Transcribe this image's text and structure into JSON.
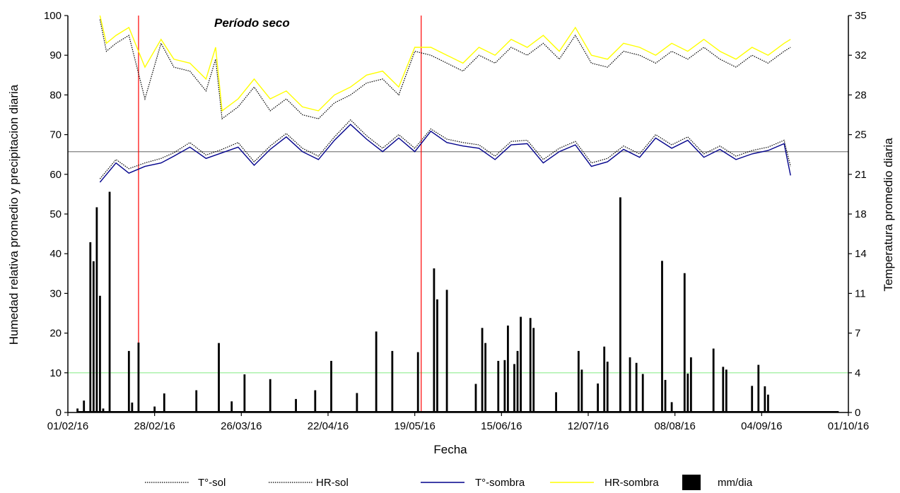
{
  "chart_data": {
    "type": "line",
    "title": "Período seco",
    "xlabel": "Fecha",
    "ylabel_left": "Humedad relativa promedio y precipitacion diaria",
    "ylabel_right": "Temperatura promedio diaria",
    "x_range": [
      "2016-02-01",
      "2016-10-01"
    ],
    "x_ticks": [
      "01/02/16",
      "28/02/16",
      "26/03/16",
      "22/04/16",
      "19/05/16",
      "15/06/16",
      "12/07/16",
      "08/08/16",
      "04/09/16",
      "01/10/16"
    ],
    "y_left": {
      "min": 0,
      "max": 100,
      "ticks": [
        "0",
        "10",
        "20",
        "30",
        "40",
        "50",
        "60",
        "70",
        "80",
        "90",
        "100"
      ]
    },
    "y_right": {
      "min": 0,
      "max": 35,
      "ticks": [
        "0",
        "4",
        "7",
        "11",
        "14",
        "18",
        "21",
        "25",
        "28",
        "32",
        "35"
      ]
    },
    "reference_lines": [
      {
        "axis": "left",
        "value": 65.7,
        "color": "#808080"
      },
      {
        "axis": "left",
        "value": 10,
        "color": "#90ee90"
      },
      {
        "axis": "x",
        "value": "2016-02-23",
        "color": "#ff0000"
      },
      {
        "axis": "x",
        "value": "2016-05-21",
        "color": "#ff0000"
      }
    ],
    "series": [
      {
        "name": "T°-sol",
        "axis": "right",
        "color": "#000000",
        "dash": "dotted",
        "x": [
          "2016-02-11",
          "2016-02-16",
          "2016-02-20",
          "2016-02-25",
          "2016-03-01",
          "2016-03-05",
          "2016-03-10",
          "2016-03-15",
          "2016-03-20",
          "2016-03-25",
          "2016-03-30",
          "2016-04-04",
          "2016-04-09",
          "2016-04-14",
          "2016-04-19",
          "2016-04-24",
          "2016-04-29",
          "2016-05-04",
          "2016-05-09",
          "2016-05-14",
          "2016-05-19",
          "2016-05-24",
          "2016-05-29",
          "2016-06-03",
          "2016-06-08",
          "2016-06-13",
          "2016-06-18",
          "2016-06-23",
          "2016-06-28",
          "2016-07-03",
          "2016-07-08",
          "2016-07-13",
          "2016-07-18",
          "2016-07-23",
          "2016-07-28",
          "2016-08-02",
          "2016-08-07",
          "2016-08-12",
          "2016-08-17",
          "2016-08-22",
          "2016-08-27",
          "2016-09-01",
          "2016-09-06",
          "2016-09-11",
          "2016-09-13"
        ],
        "values": [
          20.6,
          22.3,
          21.5,
          22.0,
          22.4,
          22.9,
          23.8,
          22.7,
          23.2,
          23.8,
          22.1,
          23.5,
          24.6,
          23.3,
          22.6,
          24.3,
          25.8,
          24.4,
          23.3,
          24.5,
          23.3,
          25.0,
          24.1,
          23.8,
          23.6,
          22.6,
          23.9,
          24.0,
          22.3,
          23.3,
          23.9,
          22.0,
          22.4,
          23.5,
          22.8,
          24.5,
          23.6,
          24.3,
          22.8,
          23.5,
          22.6,
          23.1,
          23.4,
          24.0,
          21.7
        ]
      },
      {
        "name": "HR-sol",
        "axis": "left",
        "color": "#000000",
        "dash": "dotted",
        "x": [
          "2016-02-11",
          "2016-02-13",
          "2016-02-16",
          "2016-02-20",
          "2016-02-25",
          "2016-03-01",
          "2016-03-05",
          "2016-03-10",
          "2016-03-15",
          "2016-03-18",
          "2016-03-20",
          "2016-03-25",
          "2016-03-30",
          "2016-04-04",
          "2016-04-09",
          "2016-04-14",
          "2016-04-19",
          "2016-04-24",
          "2016-04-29",
          "2016-05-04",
          "2016-05-09",
          "2016-05-14",
          "2016-05-19",
          "2016-05-24",
          "2016-05-29",
          "2016-06-03",
          "2016-06-08",
          "2016-06-13",
          "2016-06-18",
          "2016-06-23",
          "2016-06-28",
          "2016-07-03",
          "2016-07-08",
          "2016-07-13",
          "2016-07-18",
          "2016-07-23",
          "2016-07-28",
          "2016-08-02",
          "2016-08-07",
          "2016-08-12",
          "2016-08-17",
          "2016-08-22",
          "2016-08-27",
          "2016-09-01",
          "2016-09-06",
          "2016-09-11",
          "2016-09-13"
        ],
        "values": [
          99,
          91,
          93,
          95,
          79,
          93,
          87,
          86,
          81,
          89,
          74,
          77,
          82,
          76,
          79,
          75,
          74,
          78,
          80,
          83,
          84,
          80,
          91,
          90,
          88,
          86,
          90,
          88,
          92,
          90,
          93,
          89,
          95,
          88,
          87,
          91,
          90,
          88,
          91,
          89,
          92,
          89,
          87,
          90,
          88,
          91,
          92
        ]
      },
      {
        "name": "T°-sombra",
        "axis": "right",
        "color": "#00008b",
        "dash": "solid",
        "x": [
          "2016-02-11",
          "2016-02-16",
          "2016-02-20",
          "2016-02-25",
          "2016-03-01",
          "2016-03-05",
          "2016-03-10",
          "2016-03-15",
          "2016-03-20",
          "2016-03-25",
          "2016-03-30",
          "2016-04-04",
          "2016-04-09",
          "2016-04-14",
          "2016-04-19",
          "2016-04-24",
          "2016-04-29",
          "2016-05-04",
          "2016-05-09",
          "2016-05-14",
          "2016-05-19",
          "2016-05-24",
          "2016-05-29",
          "2016-06-03",
          "2016-06-08",
          "2016-06-13",
          "2016-06-18",
          "2016-06-23",
          "2016-06-28",
          "2016-07-03",
          "2016-07-08",
          "2016-07-13",
          "2016-07-18",
          "2016-07-23",
          "2016-07-28",
          "2016-08-02",
          "2016-08-07",
          "2016-08-12",
          "2016-08-17",
          "2016-08-22",
          "2016-08-27",
          "2016-09-01",
          "2016-09-06",
          "2016-09-11",
          "2016-09-13"
        ],
        "values": [
          20.3,
          22.0,
          21.1,
          21.7,
          22.0,
          22.6,
          23.4,
          22.4,
          22.9,
          23.4,
          21.8,
          23.2,
          24.3,
          23.0,
          22.3,
          24.0,
          25.4,
          24.1,
          23.0,
          24.2,
          23.0,
          24.8,
          23.8,
          23.5,
          23.3,
          22.3,
          23.6,
          23.7,
          22.0,
          23.0,
          23.6,
          21.7,
          22.1,
          23.2,
          22.5,
          24.2,
          23.3,
          24.0,
          22.5,
          23.2,
          22.3,
          22.8,
          23.1,
          23.7,
          20.9
        ]
      },
      {
        "name": "HR-sombra",
        "axis": "left",
        "color": "#ffff00",
        "dash": "solid",
        "x": [
          "2016-02-11",
          "2016-02-13",
          "2016-02-16",
          "2016-02-20",
          "2016-02-25",
          "2016-03-01",
          "2016-03-05",
          "2016-03-10",
          "2016-03-15",
          "2016-03-18",
          "2016-03-20",
          "2016-03-25",
          "2016-03-30",
          "2016-04-04",
          "2016-04-09",
          "2016-04-14",
          "2016-04-19",
          "2016-04-24",
          "2016-04-29",
          "2016-05-04",
          "2016-05-09",
          "2016-05-14",
          "2016-05-19",
          "2016-05-24",
          "2016-05-29",
          "2016-06-03",
          "2016-06-08",
          "2016-06-13",
          "2016-06-18",
          "2016-06-23",
          "2016-06-28",
          "2016-07-03",
          "2016-07-08",
          "2016-07-13",
          "2016-07-18",
          "2016-07-23",
          "2016-07-28",
          "2016-08-02",
          "2016-08-07",
          "2016-08-12",
          "2016-08-17",
          "2016-08-22",
          "2016-08-27",
          "2016-09-01",
          "2016-09-06",
          "2016-09-11",
          "2016-09-13"
        ],
        "values": [
          100,
          93,
          95,
          97,
          87,
          94,
          89,
          88,
          84,
          92,
          76,
          79,
          84,
          79,
          81,
          77,
          76,
          80,
          82,
          85,
          86,
          82,
          92,
          92,
          90,
          88,
          92,
          90,
          94,
          92,
          95,
          91,
          97,
          90,
          89,
          93,
          92,
          90,
          93,
          91,
          94,
          91,
          89,
          92,
          90,
          93,
          94
        ]
      },
      {
        "name": "mm/dia",
        "axis": "left",
        "color": "#000000",
        "type": "bar",
        "x": [
          "2016-02-04",
          "2016-02-06",
          "2016-02-08",
          "2016-02-09",
          "2016-02-10",
          "2016-02-11",
          "2016-02-12",
          "2016-02-14",
          "2016-02-20",
          "2016-02-21",
          "2016-02-23",
          "2016-02-28",
          "2016-03-02",
          "2016-03-12",
          "2016-03-19",
          "2016-03-23",
          "2016-03-27",
          "2016-04-04",
          "2016-04-12",
          "2016-04-18",
          "2016-04-23",
          "2016-05-01",
          "2016-05-07",
          "2016-05-12",
          "2016-05-20",
          "2016-05-25",
          "2016-05-26",
          "2016-05-29",
          "2016-06-07",
          "2016-06-09",
          "2016-06-10",
          "2016-06-14",
          "2016-06-16",
          "2016-06-17",
          "2016-06-19",
          "2016-06-20",
          "2016-06-21",
          "2016-06-24",
          "2016-06-25",
          "2016-07-02",
          "2016-07-09",
          "2016-07-10",
          "2016-07-15",
          "2016-07-17",
          "2016-07-18",
          "2016-07-22",
          "2016-07-25",
          "2016-07-27",
          "2016-07-29",
          "2016-08-04",
          "2016-08-05",
          "2016-08-07",
          "2016-08-11",
          "2016-08-12",
          "2016-08-13",
          "2016-08-20",
          "2016-08-23",
          "2016-08-24",
          "2016-09-01",
          "2016-09-03",
          "2016-09-05",
          "2016-09-06"
        ],
        "values": [
          1,
          3,
          42.9,
          38.1,
          51.7,
          29.4,
          1,
          55.6,
          15.5,
          2.5,
          17.6,
          1.5,
          4.8,
          5.6,
          17.5,
          2.8,
          9.6,
          8.4,
          3.4,
          5.6,
          13,
          4.9,
          20.4,
          15.5,
          15.2,
          36.3,
          28.5,
          30.9,
          7.2,
          21.3,
          17.5,
          13,
          13.2,
          21.9,
          12.2,
          15.5,
          24.1,
          23.8,
          21.3,
          5.1,
          15.5,
          10.8,
          7.3,
          16.6,
          12.8,
          54.2,
          13.9,
          12.5,
          9.7,
          38.2,
          8.2,
          2.6,
          35.1,
          9.8,
          13.9,
          16.1,
          11.5,
          10.8,
          6.7,
          12,
          6.6,
          4.5
        ]
      }
    ],
    "legend": {
      "placement": "bottom",
      "items": [
        "T°-sol",
        "HR-sol",
        "T°-sombra",
        "HR-sombra",
        "mm/dia"
      ]
    }
  }
}
